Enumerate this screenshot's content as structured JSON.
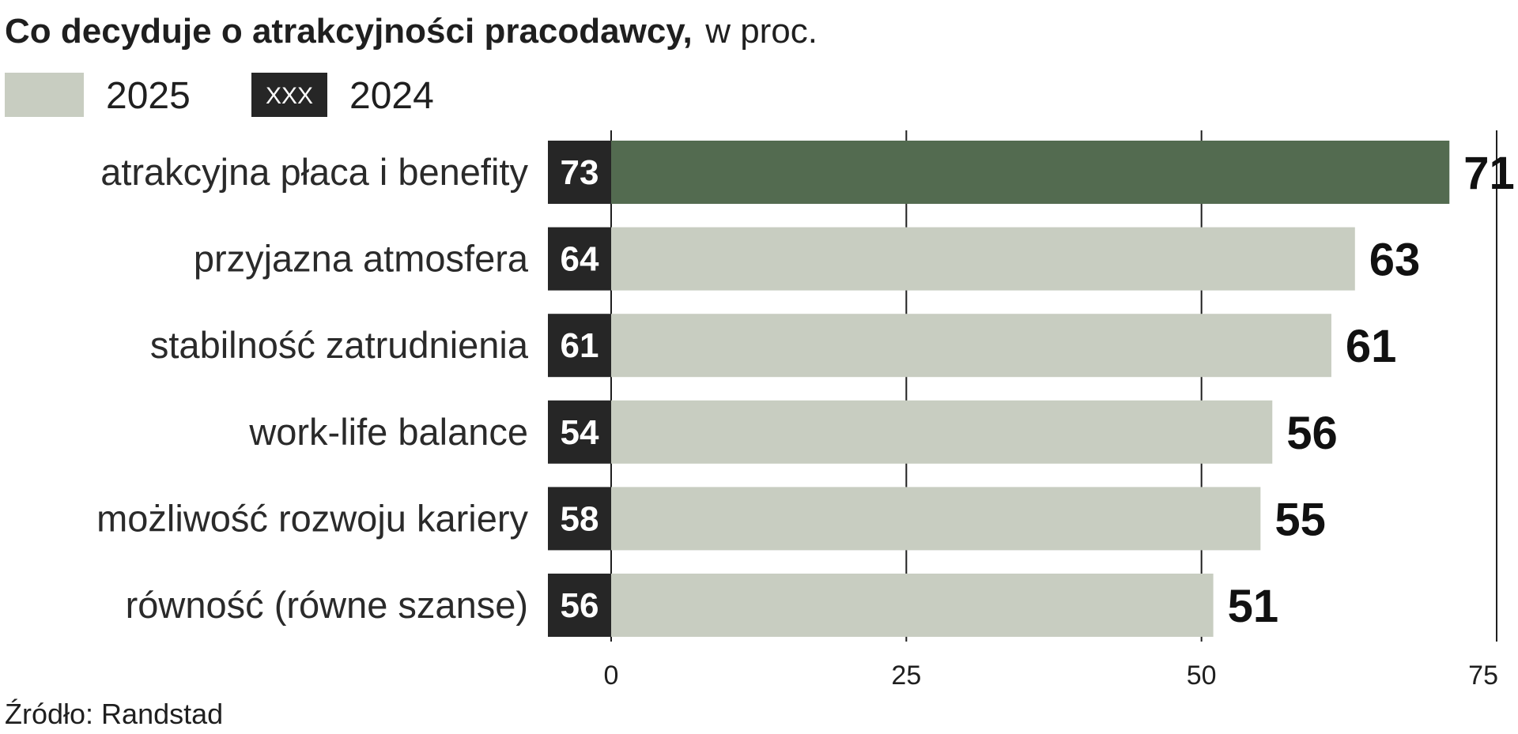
{
  "title": {
    "bold": "Co decyduje o atrakcyjności pracodawcy,",
    "unit": "w proc."
  },
  "legend": {
    "current": "2025",
    "previous": "2024",
    "previous_sample_text": "XXX"
  },
  "colors": {
    "bar_default": "#c8cdc1",
    "bar_highlight": "#536b50",
    "prev_box": "#262626",
    "gridline": "#1f1f1f"
  },
  "chart_data": {
    "type": "bar",
    "orientation": "horizontal",
    "categories": [
      "atrakcyjna płaca i benefity",
      "przyjazna atmosfera",
      "stabilność zatrudnienia",
      "work-life balance",
      "możliwość rozwoju kariery",
      "równość (równe szanse)"
    ],
    "series": [
      {
        "name": "2025",
        "values": [
          71,
          63,
          61,
          56,
          55,
          51
        ]
      },
      {
        "name": "2024",
        "values": [
          73,
          64,
          61,
          54,
          58,
          56
        ]
      }
    ],
    "highlight_index": 0,
    "xlim": [
      0,
      75
    ],
    "xticks": [
      0,
      25,
      50,
      75
    ],
    "grid": true,
    "xlabel": "",
    "ylabel": ""
  },
  "source": "Źródło: Randstad"
}
